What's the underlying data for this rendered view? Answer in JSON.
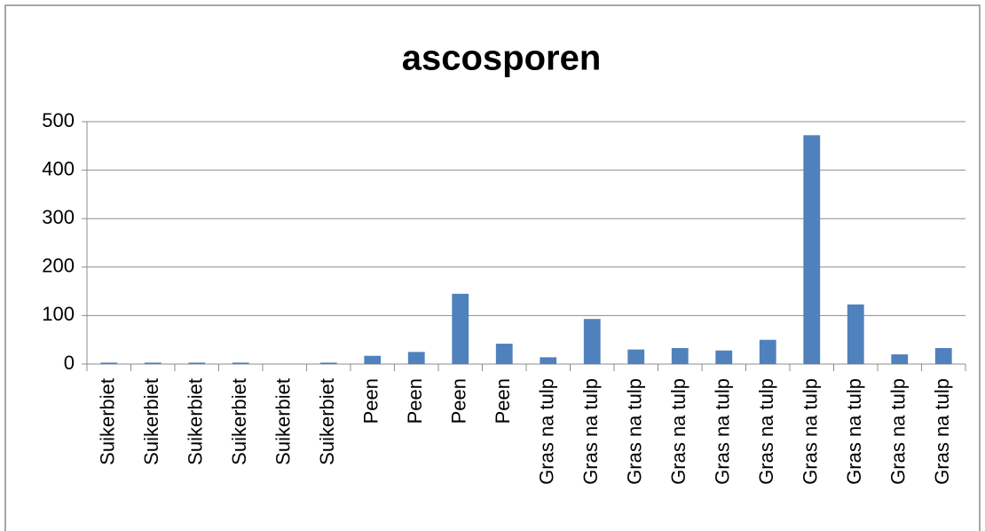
{
  "chart_data": {
    "type": "bar",
    "title": "ascosporen",
    "categories": [
      "Suikerbiet",
      "Suikerbiet",
      "Suikerbiet",
      "Suikerbiet",
      "Suikerbiet",
      "Suikerbiet",
      "Peen",
      "Peen",
      "Peen",
      "Peen",
      "Gras na tulp",
      "Gras na tulp",
      "Gras na tulp",
      "Gras na tulp",
      "Gras na tulp",
      "Gras na tulp",
      "Gras na tulp",
      "Gras na tulp",
      "Gras na tulp",
      "Gras na tulp"
    ],
    "values": [
      3,
      3,
      3,
      3,
      0,
      3,
      17,
      25,
      145,
      42,
      14,
      93,
      30,
      33,
      28,
      50,
      472,
      123,
      20,
      33
    ],
    "color": "#4f81bd",
    "ylim": [
      0,
      500
    ],
    "yticks": [
      0,
      100,
      200,
      300,
      400,
      500
    ],
    "grid": true
  }
}
